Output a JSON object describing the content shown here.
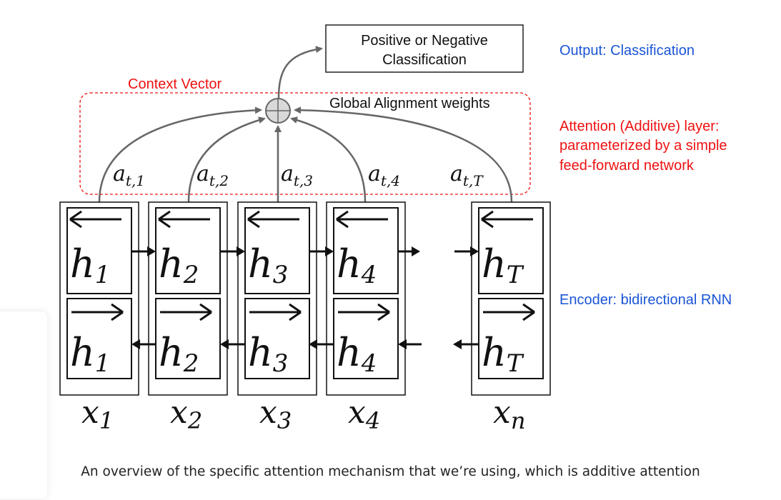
{
  "output_box": {
    "line1": "Positive or Negative",
    "line2": "Classification"
  },
  "context_label": "Context Vector",
  "alignment_label": "Global Alignment weights",
  "side_labels": {
    "output": "Output: Classification",
    "attention_line1": "Attention (Additive) layer:",
    "attention_line2": "parameterized by a simple",
    "attention_line3": "feed-forward network",
    "encoder": "Encoder: bidirectional RNN"
  },
  "weights": [
    {
      "base": "a",
      "sub": "t,1"
    },
    {
      "base": "a",
      "sub": "t,2"
    },
    {
      "base": "a",
      "sub": "t,3"
    },
    {
      "base": "a",
      "sub": "t,4"
    },
    {
      "base": "a",
      "sub": "t,T"
    }
  ],
  "cells": [
    {
      "h_base": "h",
      "h_sub": "1",
      "x_base": "x",
      "x_sub": "1"
    },
    {
      "h_base": "h",
      "h_sub": "2",
      "x_base": "x",
      "x_sub": "2"
    },
    {
      "h_base": "h",
      "h_sub": "3",
      "x_base": "x",
      "x_sub": "3"
    },
    {
      "h_base": "h",
      "h_sub": "4",
      "x_base": "x",
      "x_sub": "4"
    },
    {
      "h_base": "h",
      "h_sub": "T",
      "x_base": "x",
      "x_sub": "n"
    }
  ],
  "caption": "An overview of the specific attention mechanism that we’re using, which is additive attention",
  "colors": {
    "blue": "#1a55d6",
    "red": "#ee1111",
    "grey": "#666666",
    "black": "#111111"
  }
}
